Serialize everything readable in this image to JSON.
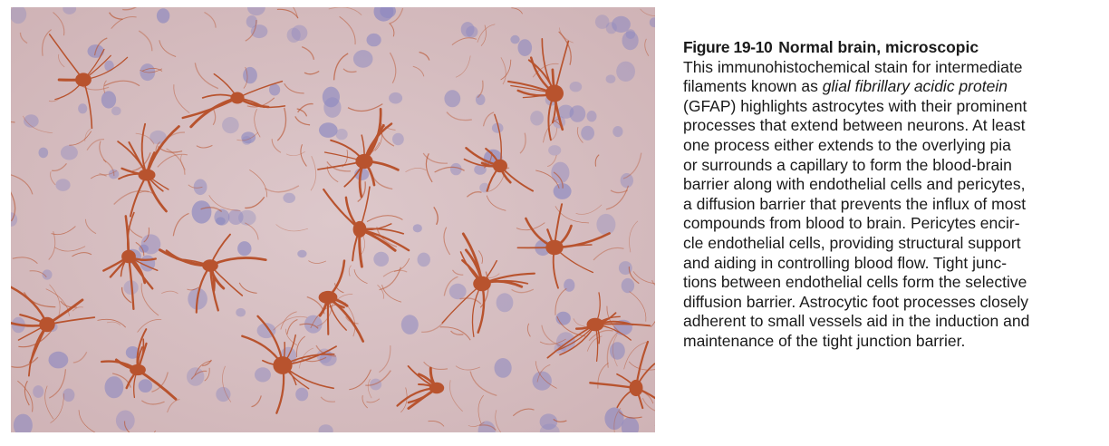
{
  "figure": {
    "number": "Figure 19-10",
    "heading": "Normal brain, microscopic",
    "image_description": "immunohistochemical stain (GFAP), astrocytes in brown on pale purple background with blue nuclei",
    "colors": {
      "background": "#d7c0c4",
      "stain": "#b8532e",
      "nuclei": "#8e89c0"
    }
  },
  "caption": {
    "lines": [
      {
        "text": "This immunohistochemical stain for intermediate"
      },
      {
        "before": "filaments known as ",
        "italic": "glial fibrillary acidic protein",
        "after": ""
      },
      {
        "text": "(GFAP) highlights astrocytes with their prominent"
      },
      {
        "text": "processes that extend between neurons. At least"
      },
      {
        "text": "one process either extends to the overlying pia"
      },
      {
        "text": "or surrounds a capillary to form the blood-brain"
      },
      {
        "text": "barrier along with endothelial cells and pericytes,"
      },
      {
        "text": "a diffusion barrier that prevents the influx of most"
      },
      {
        "text": "compounds from blood to brain. Pericytes encir-"
      },
      {
        "text": "cle endothelial cells, providing structural support"
      },
      {
        "text": "and aiding in controlling blood flow. Tight junc-"
      },
      {
        "text": "tions between endothelial cells form the selective"
      },
      {
        "text": "diffusion barrier. Astrocytic foot processes closely"
      },
      {
        "text": "adherent to small vessels aid in the induction and"
      },
      {
        "text": "maintenance of the tight junction barrier."
      }
    ]
  }
}
